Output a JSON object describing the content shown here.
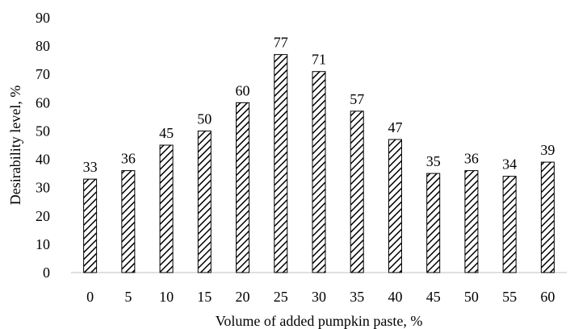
{
  "chart_data": {
    "type": "bar",
    "title": "",
    "xlabel": "Volume of added pumpkin paste, %",
    "ylabel": "Desirability level, %",
    "categories": [
      "0",
      "5",
      "10",
      "15",
      "20",
      "25",
      "30",
      "35",
      "40",
      "45",
      "50",
      "55",
      "60"
    ],
    "values": [
      33,
      36,
      45,
      50,
      60,
      77,
      71,
      57,
      47,
      35,
      36,
      34,
      39
    ],
    "data_labels": [
      "33",
      "36",
      "45",
      "50",
      "60",
      "77",
      "71",
      "57",
      "47",
      "35",
      "36",
      "34",
      "39"
    ],
    "ylim": [
      0,
      90
    ],
    "yticks": [
      "0",
      "10",
      "20",
      "30",
      "40",
      "50",
      "60",
      "70",
      "80",
      "90"
    ],
    "grid": false,
    "legend": "none",
    "bar_fill": "diagonal-hatch",
    "bar_color": "#000000"
  }
}
